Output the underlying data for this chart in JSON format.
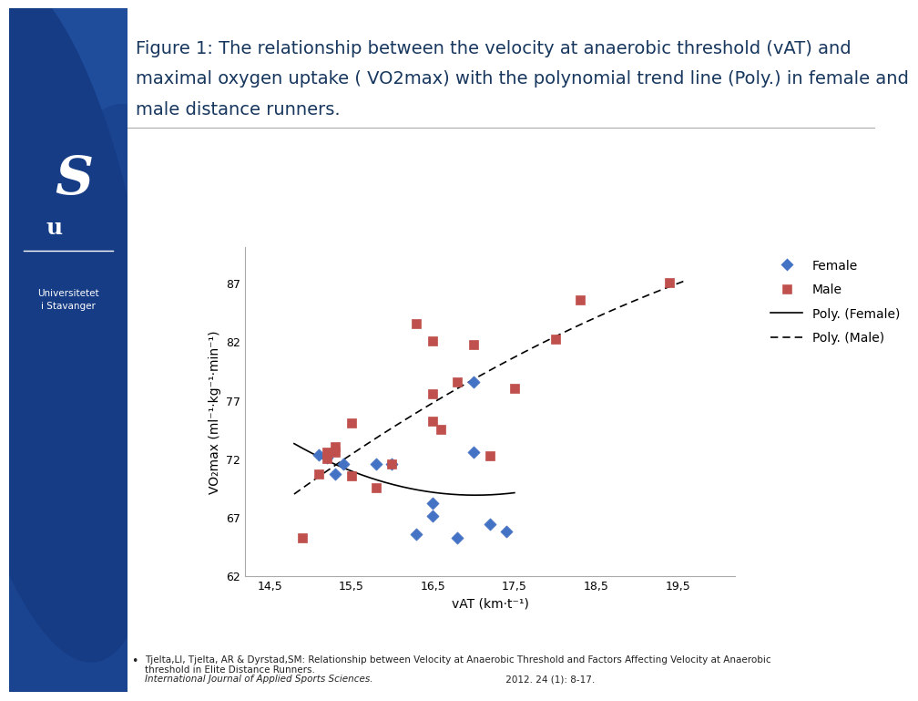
{
  "female_x": [
    15.1,
    15.2,
    15.3,
    15.4,
    15.8,
    16.0,
    16.3,
    16.5,
    16.5,
    16.8,
    17.0,
    17.0,
    17.2,
    17.4
  ],
  "female_y": [
    72.3,
    72.1,
    70.7,
    71.5,
    71.5,
    71.5,
    65.5,
    68.2,
    67.1,
    65.2,
    72.5,
    78.5,
    66.4,
    65.8
  ],
  "male_x": [
    14.9,
    15.1,
    15.2,
    15.2,
    15.3,
    15.3,
    15.5,
    15.5,
    15.8,
    16.0,
    16.3,
    16.5,
    16.5,
    16.5,
    16.6,
    16.8,
    17.0,
    17.2,
    17.5,
    18.0,
    18.3,
    19.4
  ],
  "male_y": [
    65.2,
    70.7,
    72.5,
    72.0,
    72.5,
    73.0,
    75.0,
    70.5,
    69.5,
    71.5,
    83.5,
    77.5,
    75.2,
    82.0,
    74.5,
    78.5,
    81.7,
    72.2,
    78.0,
    82.2,
    85.5,
    87.0
  ],
  "female_color": "#4472c4",
  "male_color": "#c0504d",
  "background_color": "#ffffff",
  "title_line1": "Figure 1: The relationship between the velocity at anaerobic threshold (vAT) and",
  "title_line2": "maximal oxygen uptake ( VO2max) with the polynomial trend line (Poly.) in female and",
  "title_line3": "male distance runners.",
  "title_color": "#17375e",
  "xlabel": "vAT (km·t⁻¹)",
  "ylabel": "VO₂max (ml⁻¹·kg⁻¹·min⁻¹)",
  "xlim": [
    14.2,
    20.2
  ],
  "ylim": [
    62,
    90
  ],
  "xticks": [
    14.5,
    15.5,
    16.5,
    17.5,
    18.5,
    19.5
  ],
  "yticks": [
    62,
    67,
    72,
    77,
    82,
    87
  ],
  "xtick_labels": [
    "14,5",
    "15,5",
    "16,5",
    "17,5",
    "18,5",
    "19,5"
  ],
  "ytick_labels": [
    "62",
    "67",
    "72",
    "77",
    "82",
    "87"
  ],
  "footnote_normal": "Tjelta,LI, Tjelta, AR & Dyrstad,SM: Relationship between Velocity at Anaerobic Threshold and Factors Affecting Velocity at Anaerobic\nthreshold in Elite Distance Runners. ",
  "footnote_italic": "International Journal of Applied Sports Sciences.",
  "footnote_end": " 2012. 24 (1): 8-17.",
  "left_panel_color": "#1f4d9b",
  "left_panel_dark": "#163a75",
  "univ_name": "Universitetet\ni Stavanger",
  "title_fontsize": 14,
  "axis_fontsize": 10,
  "tick_fontsize": 9,
  "legend_fontsize": 10
}
